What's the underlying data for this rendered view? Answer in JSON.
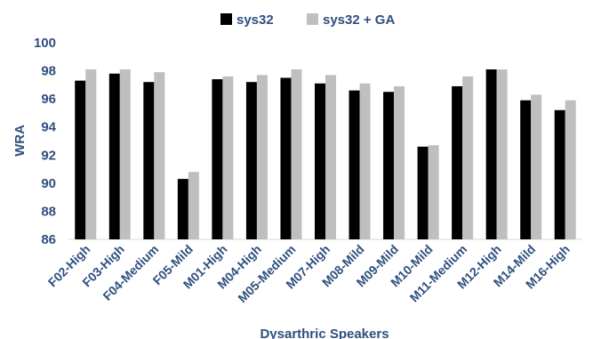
{
  "chart_data": {
    "type": "bar",
    "title": "",
    "xlabel": "Dysarthric Speakers",
    "ylabel": "WRA",
    "ylim": [
      86,
      100
    ],
    "yticks": [
      86,
      88,
      90,
      92,
      94,
      96,
      98,
      100
    ],
    "grid": false,
    "legend_position": "top-center",
    "categories": [
      "F02-High",
      "F03-High",
      "F04-Medium",
      "F05-Mild",
      "M01-High",
      "M04-High",
      "M05-Medium",
      "M07-High",
      "M08-Mild",
      "M09-Mild",
      "M10-Mild",
      "M11-Medium",
      "M12-High",
      "M14-Mild",
      "M16-High"
    ],
    "series": [
      {
        "name": "sys32",
        "color": "#000000",
        "values": [
          97.3,
          97.8,
          97.2,
          90.3,
          97.4,
          97.2,
          97.5,
          97.1,
          96.6,
          96.5,
          92.6,
          96.9,
          98.1,
          95.9,
          95.2
        ]
      },
      {
        "name": "sys32 + GA",
        "color": "#bfbfbf",
        "values": [
          98.1,
          98.1,
          97.9,
          90.8,
          97.6,
          97.7,
          98.1,
          97.7,
          97.1,
          96.9,
          92.7,
          97.6,
          98.1,
          96.3,
          95.9
        ]
      }
    ]
  }
}
